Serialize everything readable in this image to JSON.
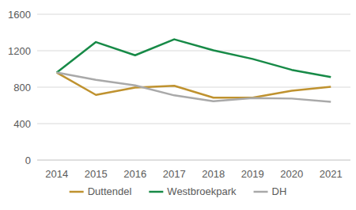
{
  "chart_data": {
    "type": "line",
    "categories": [
      "2014",
      "2015",
      "2016",
      "2017",
      "2018",
      "2019",
      "2020",
      "2021"
    ],
    "series": [
      {
        "name": "Duttendel",
        "color": "#bf922f",
        "values": [
          960,
          715,
          795,
          815,
          685,
          685,
          760,
          805
        ]
      },
      {
        "name": "Westbroekpark",
        "color": "#178a47",
        "values": [
          960,
          1295,
          1150,
          1325,
          1205,
          1110,
          990,
          910
        ]
      },
      {
        "name": "DH",
        "color": "#a9a9a9",
        "values": [
          960,
          880,
          820,
          710,
          645,
          680,
          675,
          640
        ]
      }
    ],
    "ylim": [
      0,
      1600
    ],
    "yticks": [
      0,
      400,
      800,
      1200,
      1600
    ],
    "grid": true,
    "legend": "bottom"
  }
}
